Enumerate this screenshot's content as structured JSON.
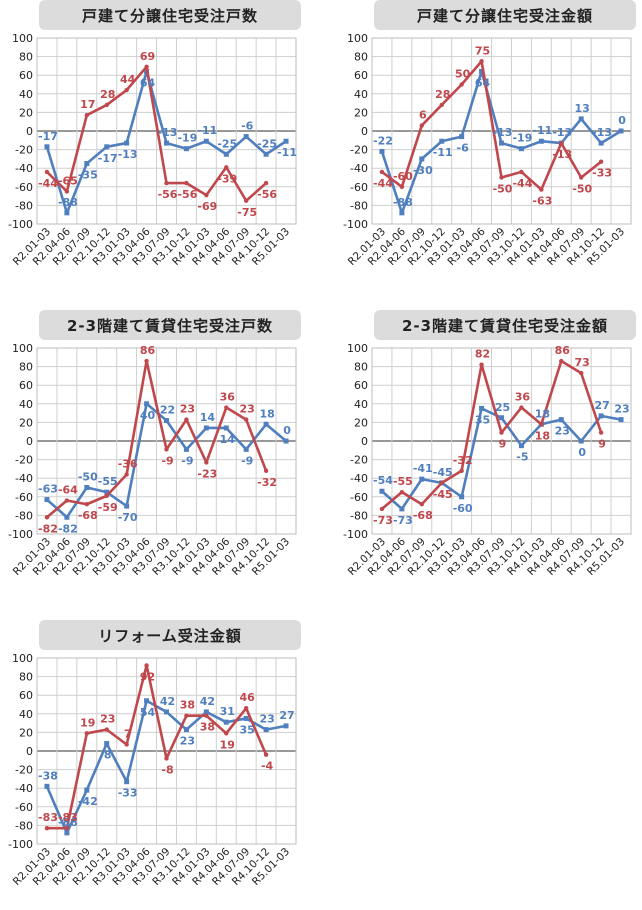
{
  "colors": {
    "blue": "#4f7fbe",
    "red": "#c0474c",
    "grid": "#cfcfcf",
    "zero": "#777777"
  },
  "chart_data": [
    {
      "type": "line",
      "title": "戸建て分譲住宅受注戸数",
      "categories": [
        "R2.01-03",
        "R2.04-06",
        "R2.07-09",
        "R2.10-12",
        "R3.01-03",
        "R3.04-06",
        "R3.07-09",
        "R3.10-12",
        "R4.01-03",
        "R4.04-06",
        "R4.07-09",
        "R4.10-12",
        "R5.01-03"
      ],
      "ylim": [
        -100,
        100
      ],
      "yticks": [
        -100,
        -80,
        -60,
        -40,
        -20,
        0,
        20,
        40,
        60,
        80,
        100
      ],
      "grid": true,
      "series": [
        {
          "color": "blue",
          "values": [
            -17,
            -88,
            -35,
            -17,
            -13,
            64,
            -13,
            -19,
            -11,
            -25,
            -6,
            -25,
            -11
          ],
          "labels": [
            "-17",
            "-88",
            "-35",
            "-17",
            "-13",
            "64",
            "-13",
            "-19",
            "-11",
            "-25",
            "-6",
            "-25",
            "-11"
          ]
        },
        {
          "color": "red",
          "values": [
            -44,
            -65,
            17,
            28,
            44,
            69,
            -56,
            -56,
            -69,
            -39,
            -75,
            -56,
            null
          ],
          "labels": [
            "-44",
            "-65",
            "17",
            "28",
            "44",
            "69",
            "-56",
            "-56",
            "-69",
            "-39",
            "-75",
            "-56",
            ""
          ]
        }
      ]
    },
    {
      "type": "line",
      "title": "戸建て分譲住宅受注金額",
      "categories": [
        "R2.01-03",
        "R2.04-06",
        "R2.07-09",
        "R2.10-12",
        "R3.01-03",
        "R3.04-06",
        "R3.07-09",
        "R3.10-12",
        "R4.01-03",
        "R4.04-06",
        "R4.07-09",
        "R4.10-12",
        "R5.01-03"
      ],
      "ylim": [
        -100,
        100
      ],
      "yticks": [
        -100,
        -80,
        -60,
        -40,
        -20,
        0,
        20,
        40,
        60,
        80,
        100
      ],
      "grid": true,
      "series": [
        {
          "color": "blue",
          "values": [
            -22,
            -88,
            -30,
            -11,
            -6,
            64,
            -13,
            -19,
            -11,
            -13,
            13,
            -13,
            0
          ],
          "labels": [
            "-22",
            "-88",
            "-30",
            "-11",
            "-6",
            "64",
            "-13",
            "-19",
            "-11",
            "-13",
            "13",
            "-13",
            "0"
          ]
        },
        {
          "color": "red",
          "values": [
            -44,
            -60,
            6,
            28,
            50,
            75,
            -50,
            -44,
            -63,
            -13,
            -50,
            -33,
            null
          ],
          "labels": [
            "-44",
            "-60",
            "6",
            "28",
            "50",
            "75",
            "-50",
            "-44",
            "-63",
            "-13",
            "-50",
            "-33",
            ""
          ]
        }
      ]
    },
    {
      "type": "line",
      "title": "2-3階建て賃貸住宅受注戸数",
      "categories": [
        "R2.01-03",
        "R2.04-06",
        "R2.07-09",
        "R2.10-12",
        "R3.01-03",
        "R3.04-06",
        "R3.07-09",
        "R3.10-12",
        "R4.01-03",
        "R4.04-06",
        "R4.07-09",
        "R4.10-12",
        "R5.01-03"
      ],
      "ylim": [
        -100,
        100
      ],
      "yticks": [
        -100,
        -80,
        -60,
        -40,
        -20,
        0,
        20,
        40,
        60,
        80,
        100
      ],
      "grid": true,
      "series": [
        {
          "color": "blue",
          "values": [
            -63,
            -82,
            -50,
            -55,
            -70,
            40,
            22,
            -9,
            14,
            14,
            -9,
            18,
            0
          ],
          "labels": [
            "-63",
            "-82",
            "-50",
            "-55",
            "-70",
            "40",
            "22",
            "-9",
            "14",
            "14",
            "-9",
            "18",
            "0"
          ]
        },
        {
          "color": "red",
          "values": [
            -82,
            -64,
            -68,
            -59,
            -36,
            86,
            -9,
            23,
            -23,
            36,
            23,
            -32,
            null
          ],
          "labels": [
            "-82",
            "-64",
            "-68",
            "-59",
            "-36",
            "86",
            "-9",
            "23",
            "-23",
            "36",
            "23",
            "-32",
            ""
          ]
        }
      ]
    },
    {
      "type": "line",
      "title": "2-3階建て賃貸住宅受注金額",
      "categories": [
        "R2.01-03",
        "R2.04-06",
        "R2.07-09",
        "R2.10-12",
        "R3.01-03",
        "R3.04-06",
        "R3.07-09",
        "R3.10-12",
        "R4.01-03",
        "R4.04-06",
        "R4.07-09",
        "R4.10-12",
        "R5.01-03"
      ],
      "ylim": [
        -100,
        100
      ],
      "yticks": [
        -100,
        -80,
        -60,
        -40,
        -20,
        0,
        20,
        40,
        60,
        80,
        100
      ],
      "grid": true,
      "series": [
        {
          "color": "blue",
          "values": [
            -54,
            -73,
            -41,
            -45,
            -60,
            35,
            25,
            -5,
            18,
            23,
            0,
            27,
            23
          ],
          "labels": [
            "-54",
            "-73",
            "-41",
            "-45",
            "-60",
            "35",
            "25",
            "-5",
            "18",
            "23",
            "0",
            "27",
            "23"
          ]
        },
        {
          "color": "red",
          "values": [
            -73,
            -55,
            -68,
            -45,
            -32,
            82,
            9,
            36,
            18,
            86,
            73,
            9,
            null
          ],
          "labels": [
            "-73",
            "-55",
            "-68",
            "-45",
            "-32",
            "82",
            "9",
            "36",
            "18",
            "86",
            "73",
            "9",
            ""
          ]
        }
      ]
    },
    {
      "type": "line",
      "title": "リフォーム受注金額",
      "categories": [
        "R2.01-03",
        "R2.04-06",
        "R2.07-09",
        "R2.10-12",
        "R3.01-03",
        "R3.04-06",
        "R3.07-09",
        "R3.10-12",
        "R4.01-03",
        "R4.04-06",
        "R4.07-09",
        "R4.10-12",
        "R5.01-03"
      ],
      "ylim": [
        -100,
        100
      ],
      "yticks": [
        -100,
        -80,
        -60,
        -40,
        -20,
        0,
        20,
        40,
        60,
        80,
        100
      ],
      "grid": true,
      "series": [
        {
          "color": "blue",
          "values": [
            -38,
            -88,
            -42,
            8,
            -33,
            54,
            42,
            23,
            42,
            31,
            35,
            23,
            27
          ],
          "labels": [
            "-38",
            "-88",
            "-42",
            "8",
            "-33",
            "54",
            "42",
            "23",
            "42",
            "31",
            "35",
            "23",
            "27"
          ]
        },
        {
          "color": "red",
          "values": [
            -83,
            -83,
            19,
            23,
            7,
            92,
            -8,
            38,
            38,
            19,
            46,
            -4,
            null
          ],
          "labels": [
            "-83",
            "-83",
            "19",
            "23",
            "7",
            "92",
            "-8",
            "38",
            "38",
            "19",
            "46",
            "-4",
            ""
          ]
        }
      ]
    }
  ]
}
